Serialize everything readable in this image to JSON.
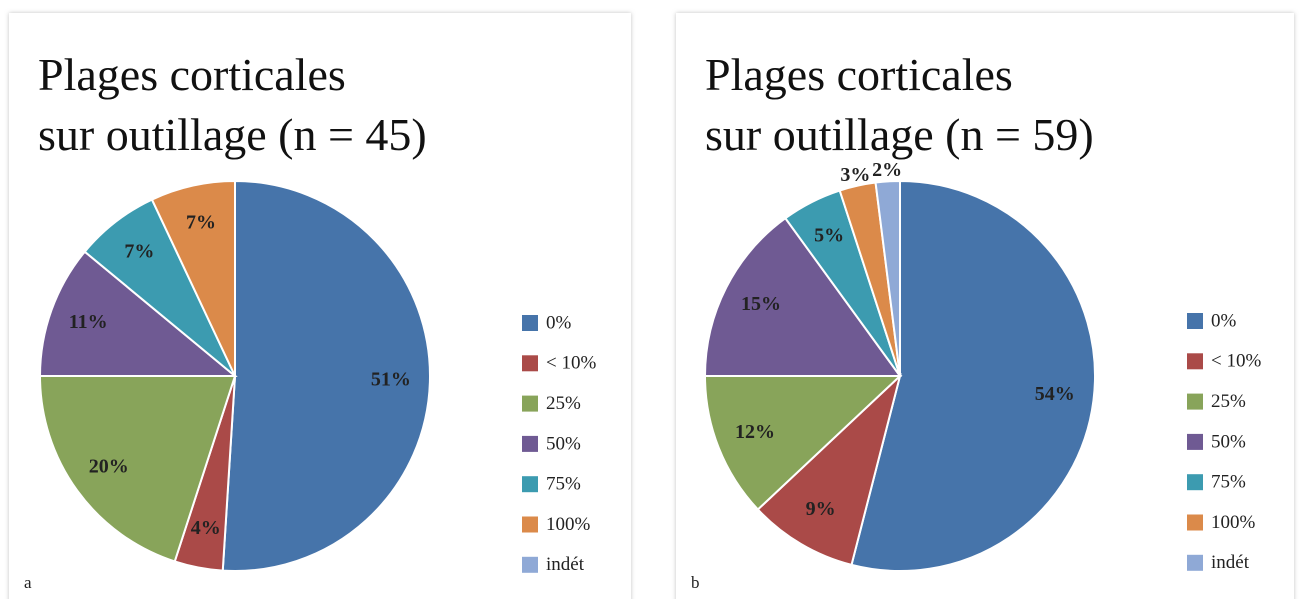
{
  "chart_data": [
    {
      "type": "pie",
      "title": [
        "Plages corticales",
        "sur outillage (n = 45)"
      ],
      "panel_label": "a",
      "categories": [
        "0%",
        "< 10%",
        "25%",
        "50%",
        "75%",
        "100%",
        "indét"
      ],
      "values": [
        51,
        4,
        20,
        11,
        7,
        7,
        null
      ],
      "value_labels": [
        "51%",
        "4%",
        "20%",
        "11%",
        "7%",
        "7%",
        null
      ],
      "colors": [
        "#4674aa",
        "#aa4a48",
        "#88a45a",
        "#6f5a93",
        "#3c9bb0",
        "#db8a4a",
        "#8fa9d6"
      ],
      "legend": "right"
    },
    {
      "type": "pie",
      "title": [
        "Plages corticales",
        "sur outillage (n = 59)"
      ],
      "panel_label": "b",
      "categories": [
        "0%",
        "< 10%",
        "25%",
        "50%",
        "75%",
        "100%",
        "indét"
      ],
      "values": [
        54,
        9,
        12,
        15,
        5,
        3,
        2
      ],
      "value_labels": [
        "54%",
        "9%",
        "12%",
        "15%",
        "5%",
        "3%",
        "2%"
      ],
      "colors": [
        "#4674aa",
        "#aa4a48",
        "#88a45a",
        "#6f5a93",
        "#3c9bb0",
        "#db8a4a",
        "#8fa9d6"
      ],
      "legend": "right"
    }
  ]
}
